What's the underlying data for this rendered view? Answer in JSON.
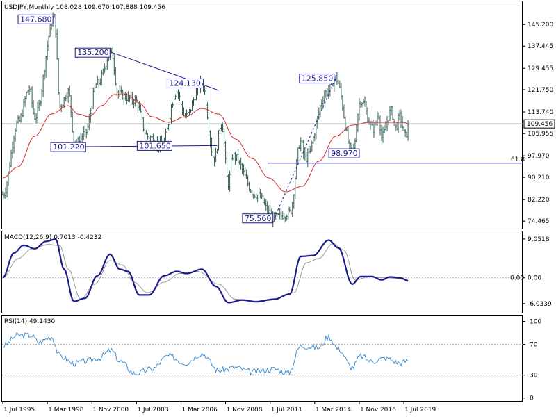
{
  "chart_data": [
    {
      "type": "candlestick",
      "title": "USDJPY,Monthly",
      "ohlc_text": "108.028 109.670 107.888 109.456",
      "last_price": "109.456",
      "ylim": [
        72.0,
        153.0
      ],
      "y_ticks": [
        "145.200",
        "137.445",
        "129.455",
        "121.750",
        "113.740",
        "105.955",
        "97.970",
        "90.210",
        "82.220",
        "74.465"
      ],
      "x_ticks": [
        "1 Jul 1995",
        "1 Mar 1998",
        "1 Nov 2000",
        "1 Jul 2003",
        "1 Mar 2006",
        "1 Nov 2008",
        "1 Jul 2011",
        "1 Mar 2014",
        "1 Nov 2016",
        "1 Jul 2019"
      ],
      "fib_label": "61.8",
      "fib_level": 95.3,
      "annotations": [
        {
          "label": "147.680",
          "date": "1998-08",
          "price": 147.68
        },
        {
          "label": "135.200",
          "date": "2002-01",
          "price": 135.2
        },
        {
          "label": "124.130",
          "date": "2007-06",
          "price": 124.13
        },
        {
          "label": "125.850",
          "date": "2015-06",
          "price": 125.85
        },
        {
          "label": "101.220",
          "date": "1999-11",
          "price": 101.22
        },
        {
          "label": "101.650",
          "date": "2005-01",
          "price": 101.65
        },
        {
          "label": "98.970",
          "date": "2016-06",
          "price": 98.97
        },
        {
          "label": "75.560",
          "date": "2011-10",
          "price": 75.56
        }
      ],
      "key_points": [
        [
          "1995-07",
          84
        ],
        [
          "1996-06",
          110
        ],
        [
          "1997-02",
          122
        ],
        [
          "1997-06",
          112
        ],
        [
          "1998-08",
          147.68
        ],
        [
          "1998-12",
          116
        ],
        [
          "1999-06",
          121
        ],
        [
          "1999-11",
          101.22
        ],
        [
          "2000-06",
          106
        ],
        [
          "2001-03",
          124
        ],
        [
          "2002-01",
          135.2
        ],
        [
          "2002-06",
          120
        ],
        [
          "2003-06",
          118
        ],
        [
          "2004-03",
          105
        ],
        [
          "2005-01",
          101.65
        ],
        [
          "2005-12",
          121
        ],
        [
          "2006-06",
          112
        ],
        [
          "2007-06",
          124.13
        ],
        [
          "2008-03",
          97
        ],
        [
          "2008-08",
          110
        ],
        [
          "2009-01",
          88
        ],
        [
          "2009-04",
          98
        ],
        [
          "2010-09",
          84
        ],
        [
          "2011-10",
          75.56
        ],
        [
          "2012-09",
          77.5
        ],
        [
          "2013-05",
          103
        ],
        [
          "2013-08",
          97
        ],
        [
          "2014-12",
          121
        ],
        [
          "2015-06",
          125.85
        ],
        [
          "2016-06",
          98.97
        ],
        [
          "2016-12",
          118
        ],
        [
          "2017-09",
          107.5
        ],
        [
          "2018-01",
          113
        ],
        [
          "2018-03",
          104.6
        ],
        [
          "2018-10",
          114
        ],
        [
          "2019-01",
          108
        ],
        [
          "2019-04",
          112
        ],
        [
          "2019-08",
          105
        ],
        [
          "2019-11",
          109.456
        ]
      ],
      "ma_points": [
        [
          "1995-07",
          90
        ],
        [
          "1996-06",
          94
        ],
        [
          "1997-06",
          105
        ],
        [
          "1998-06",
          113
        ],
        [
          "1999-06",
          116
        ],
        [
          "2000-01",
          113
        ],
        [
          "2000-09",
          112
        ],
        [
          "2001-06",
          116
        ],
        [
          "2002-03",
          120
        ],
        [
          "2002-12",
          120
        ],
        [
          "2003-09",
          117
        ],
        [
          "2004-06",
          112
        ],
        [
          "2005-06",
          110
        ],
        [
          "2006-06",
          112
        ],
        [
          "2007-06",
          115
        ],
        [
          "2008-06",
          113
        ],
        [
          "2009-06",
          104
        ],
        [
          "2010-06",
          97
        ],
        [
          "2011-06",
          90
        ],
        [
          "2012-06",
          85
        ],
        [
          "2013-06",
          87
        ],
        [
          "2014-06",
          96
        ],
        [
          "2015-06",
          105
        ],
        [
          "2016-06",
          109
        ],
        [
          "2017-06",
          110
        ],
        [
          "2018-06",
          110
        ],
        [
          "2019-06",
          110
        ],
        [
          "2019-11",
          109.5
        ]
      ],
      "trendlines": [
        {
          "from": [
            "2002-01",
            135.2
          ],
          "to": [
            "2008-06",
            121.5
          ]
        },
        {
          "from": [
            "1999-11",
            101.22
          ],
          "to": [
            "2008-05",
            101.65
          ]
        },
        {
          "from": [
            "2011-10",
            75.56
          ],
          "to": [
            "2015-06",
            125.85
          ],
          "style": "dashed"
        },
        {
          "from": [
            "2015-10",
            98.97
          ],
          "to": [
            "2016-08",
            98.97
          ]
        }
      ]
    },
    {
      "type": "line",
      "title": "MACD(12,26,9) 0.7013 -0.4232",
      "ylim": [
        -8.0,
        10.5
      ],
      "y_ticks": [
        "9.0518",
        "0.00",
        "-6.0339"
      ],
      "zero_label": "0.00",
      "series": [
        {
          "color": "#1a1a8c",
          "points": [
            [
              "1995-07",
              0
            ],
            [
              "1996-03",
              5.8
            ],
            [
              "1996-10",
              7.6
            ],
            [
              "1997-06",
              6.8
            ],
            [
              "1998-02",
              8.5
            ],
            [
              "1998-09",
              9.0
            ],
            [
              "1999-03",
              2
            ],
            [
              "1999-10",
              -5.5
            ],
            [
              "2000-06",
              -4.8
            ],
            [
              "2001-03",
              0.5
            ],
            [
              "2001-12",
              5.5
            ],
            [
              "2002-07",
              2.0
            ],
            [
              "2003-01",
              1.5
            ],
            [
              "2003-09",
              -4.0
            ],
            [
              "2004-04",
              -4.0
            ],
            [
              "2005-03",
              0.5
            ],
            [
              "2005-12",
              1.5
            ],
            [
              "2006-07",
              1.0
            ],
            [
              "2007-06",
              2.0
            ],
            [
              "2008-04",
              -2
            ],
            [
              "2009-01",
              -5.8
            ],
            [
              "2009-11",
              -5.2
            ],
            [
              "2010-09",
              -5.6
            ],
            [
              "2011-10",
              -5.0
            ],
            [
              "2012-09",
              -3.8
            ],
            [
              "2013-05",
              5.0
            ],
            [
              "2014-02",
              5.2
            ],
            [
              "2015-01",
              8.8
            ],
            [
              "2015-08",
              7.0
            ],
            [
              "2016-06",
              -1.5
            ],
            [
              "2016-12",
              0.3
            ],
            [
              "2017-08",
              0.3
            ],
            [
              "2018-03",
              -0.5
            ],
            [
              "2018-09",
              0.2
            ],
            [
              "2019-04",
              0
            ],
            [
              "2019-11",
              -0.8
            ]
          ]
        },
        {
          "color": "#999999",
          "points": [
            [
              "1995-07",
              0
            ],
            [
              "1996-06",
              4.5
            ],
            [
              "1997-04",
              6.8
            ],
            [
              "1998-04",
              7.8
            ],
            [
              "1998-12",
              7.5
            ],
            [
              "1999-06",
              2
            ],
            [
              "2000-03",
              -5.0
            ],
            [
              "2001-01",
              -1.5
            ],
            [
              "2001-12",
              4.0
            ],
            [
              "2002-09",
              3.0
            ],
            [
              "2003-05",
              -1.0
            ],
            [
              "2004-03",
              -3.5
            ],
            [
              "2005-03",
              -1.0
            ],
            [
              "2006-02",
              1.0
            ],
            [
              "2007-03",
              1.5
            ],
            [
              "2008-06",
              -1.5
            ],
            [
              "2009-06",
              -5.0
            ],
            [
              "2010-06",
              -5.2
            ],
            [
              "2011-06",
              -5.3
            ],
            [
              "2012-12",
              -3.5
            ],
            [
              "2013-09",
              3.5
            ],
            [
              "2014-06",
              4.5
            ],
            [
              "2015-04",
              8.0
            ],
            [
              "2015-12",
              6.5
            ],
            [
              "2016-08",
              -0.5
            ],
            [
              "2017-06",
              0.2
            ],
            [
              "2018-06",
              0
            ],
            [
              "2019-11",
              -0.4
            ]
          ]
        }
      ]
    },
    {
      "type": "line",
      "title": "RSI(14) 49.1430",
      "ylim": [
        -3,
        106
      ],
      "y_ticks": [
        "100",
        "70",
        "30",
        "0"
      ],
      "levels": [
        70,
        30
      ],
      "series": [
        {
          "color": "#3d8ed1",
          "points": [
            [
              "1995-07",
              68
            ],
            [
              "1996-06",
              82
            ],
            [
              "1997-03",
              82
            ],
            [
              "1997-09",
              73
            ],
            [
              "1998-06",
              80
            ],
            [
              "1998-12",
              55
            ],
            [
              "1999-10",
              45
            ],
            [
              "2000-06",
              48
            ],
            [
              "2001-03",
              52
            ],
            [
              "2002-01",
              62
            ],
            [
              "2002-07",
              48
            ],
            [
              "2003-06",
              32
            ],
            [
              "2004-06",
              38
            ],
            [
              "2005-06",
              55
            ],
            [
              "2006-06",
              46
            ],
            [
              "2007-06",
              58
            ],
            [
              "2008-06",
              36
            ],
            [
              "2009-06",
              40
            ],
            [
              "2010-06",
              34
            ],
            [
              "2011-10",
              38
            ],
            [
              "2012-08",
              33
            ],
            [
              "2013-05",
              68
            ],
            [
              "2014-06",
              66
            ],
            [
              "2015-01",
              80
            ],
            [
              "2015-08",
              64
            ],
            [
              "2016-06",
              40
            ],
            [
              "2016-12",
              55
            ],
            [
              "2017-08",
              48
            ],
            [
              "2018-06",
              52
            ],
            [
              "2019-04",
              46
            ],
            [
              "2019-11",
              49.14
            ]
          ]
        }
      ]
    }
  ]
}
